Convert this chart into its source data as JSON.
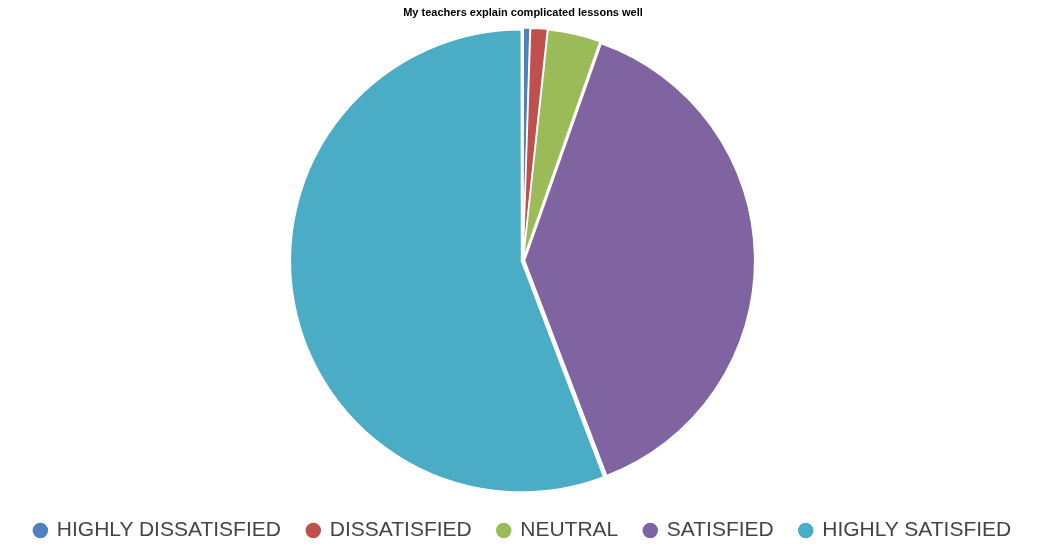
{
  "chart_data": {
    "type": "pie",
    "title": "My teachers explain complicated lessons well",
    "categories": [
      "HIGHLY DISSATISFIED",
      "DISSATISFIED",
      "NEUTRAL",
      "SATISFIED",
      "HIGHLY SATISFIED"
    ],
    "values": [
      0.5,
      1.2,
      3.7,
      38.8,
      55.8
    ],
    "colors": [
      "#4f81bd",
      "#c0504d",
      "#9bbb59",
      "#8064a2",
      "#4bacc6"
    ],
    "legend": "bottom"
  }
}
